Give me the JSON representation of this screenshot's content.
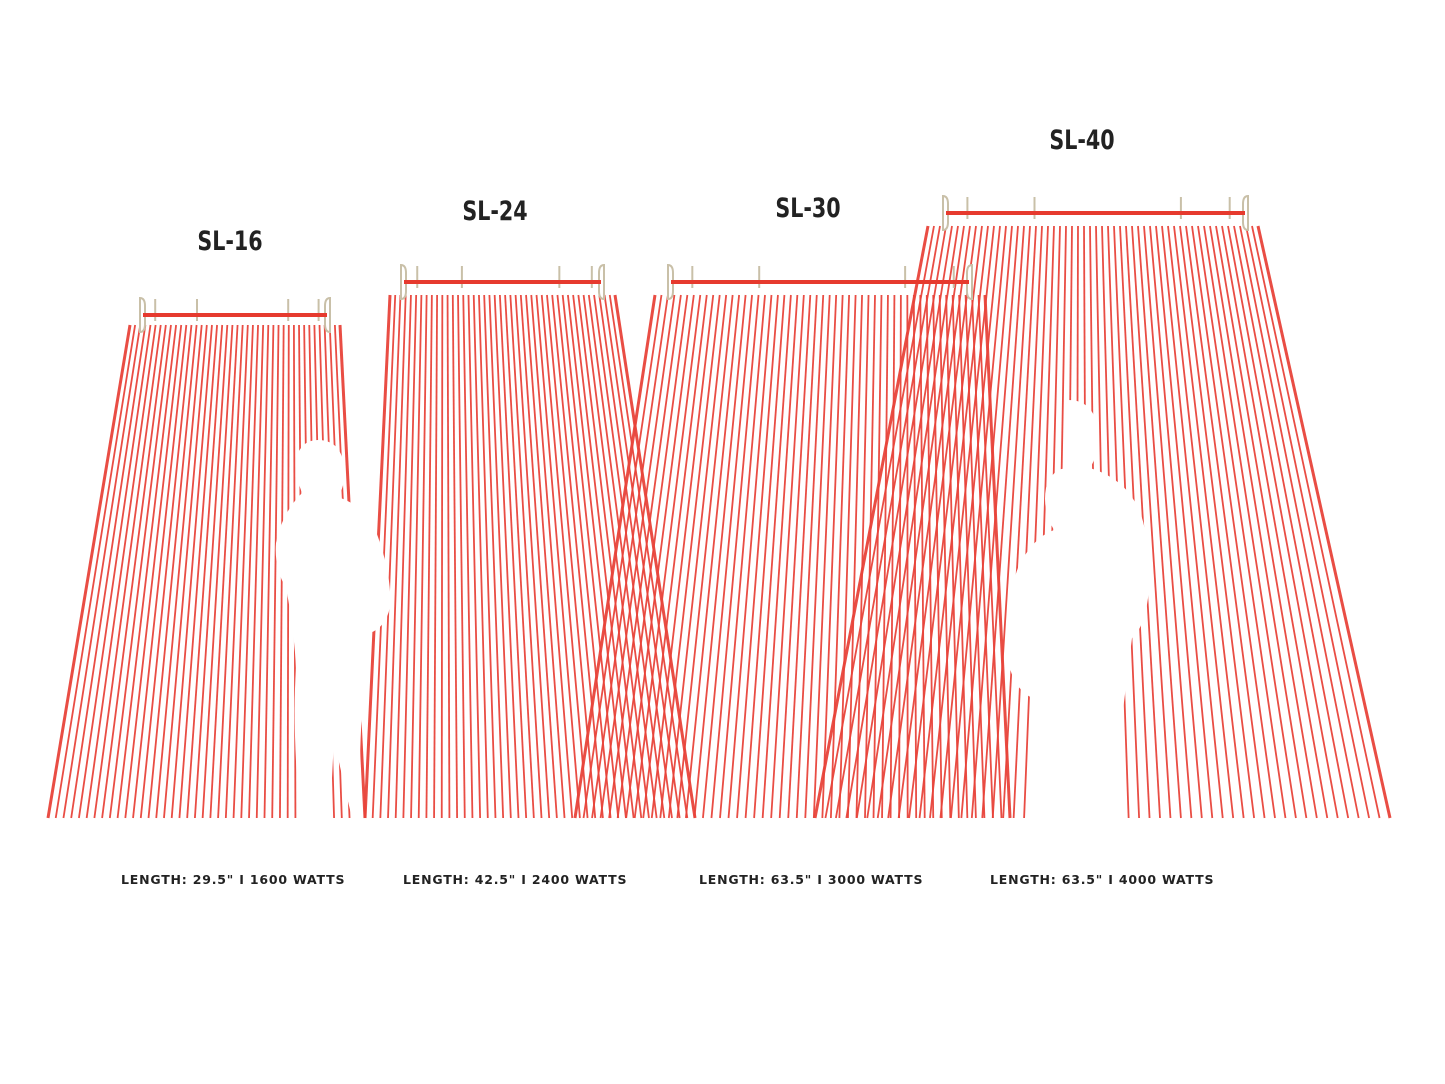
{
  "colors": {
    "ray": "#e8443a",
    "bar": "#e63a2e",
    "bracket": "#c9c0a8",
    "text": "#222222"
  },
  "heaters": [
    {
      "model": "SL-16",
      "spec": "LENGTH: 29.5\" I 1600 WATTS"
    },
    {
      "model": "SL-24",
      "spec": "LENGTH: 42.5\" I 2400 WATTS"
    },
    {
      "model": "SL-30",
      "spec": "LENGTH: 63.5\" I 3000 WATTS"
    },
    {
      "model": "SL-40",
      "spec": "LENGTH: 63.5\" I 4000 WATTS"
    }
  ]
}
